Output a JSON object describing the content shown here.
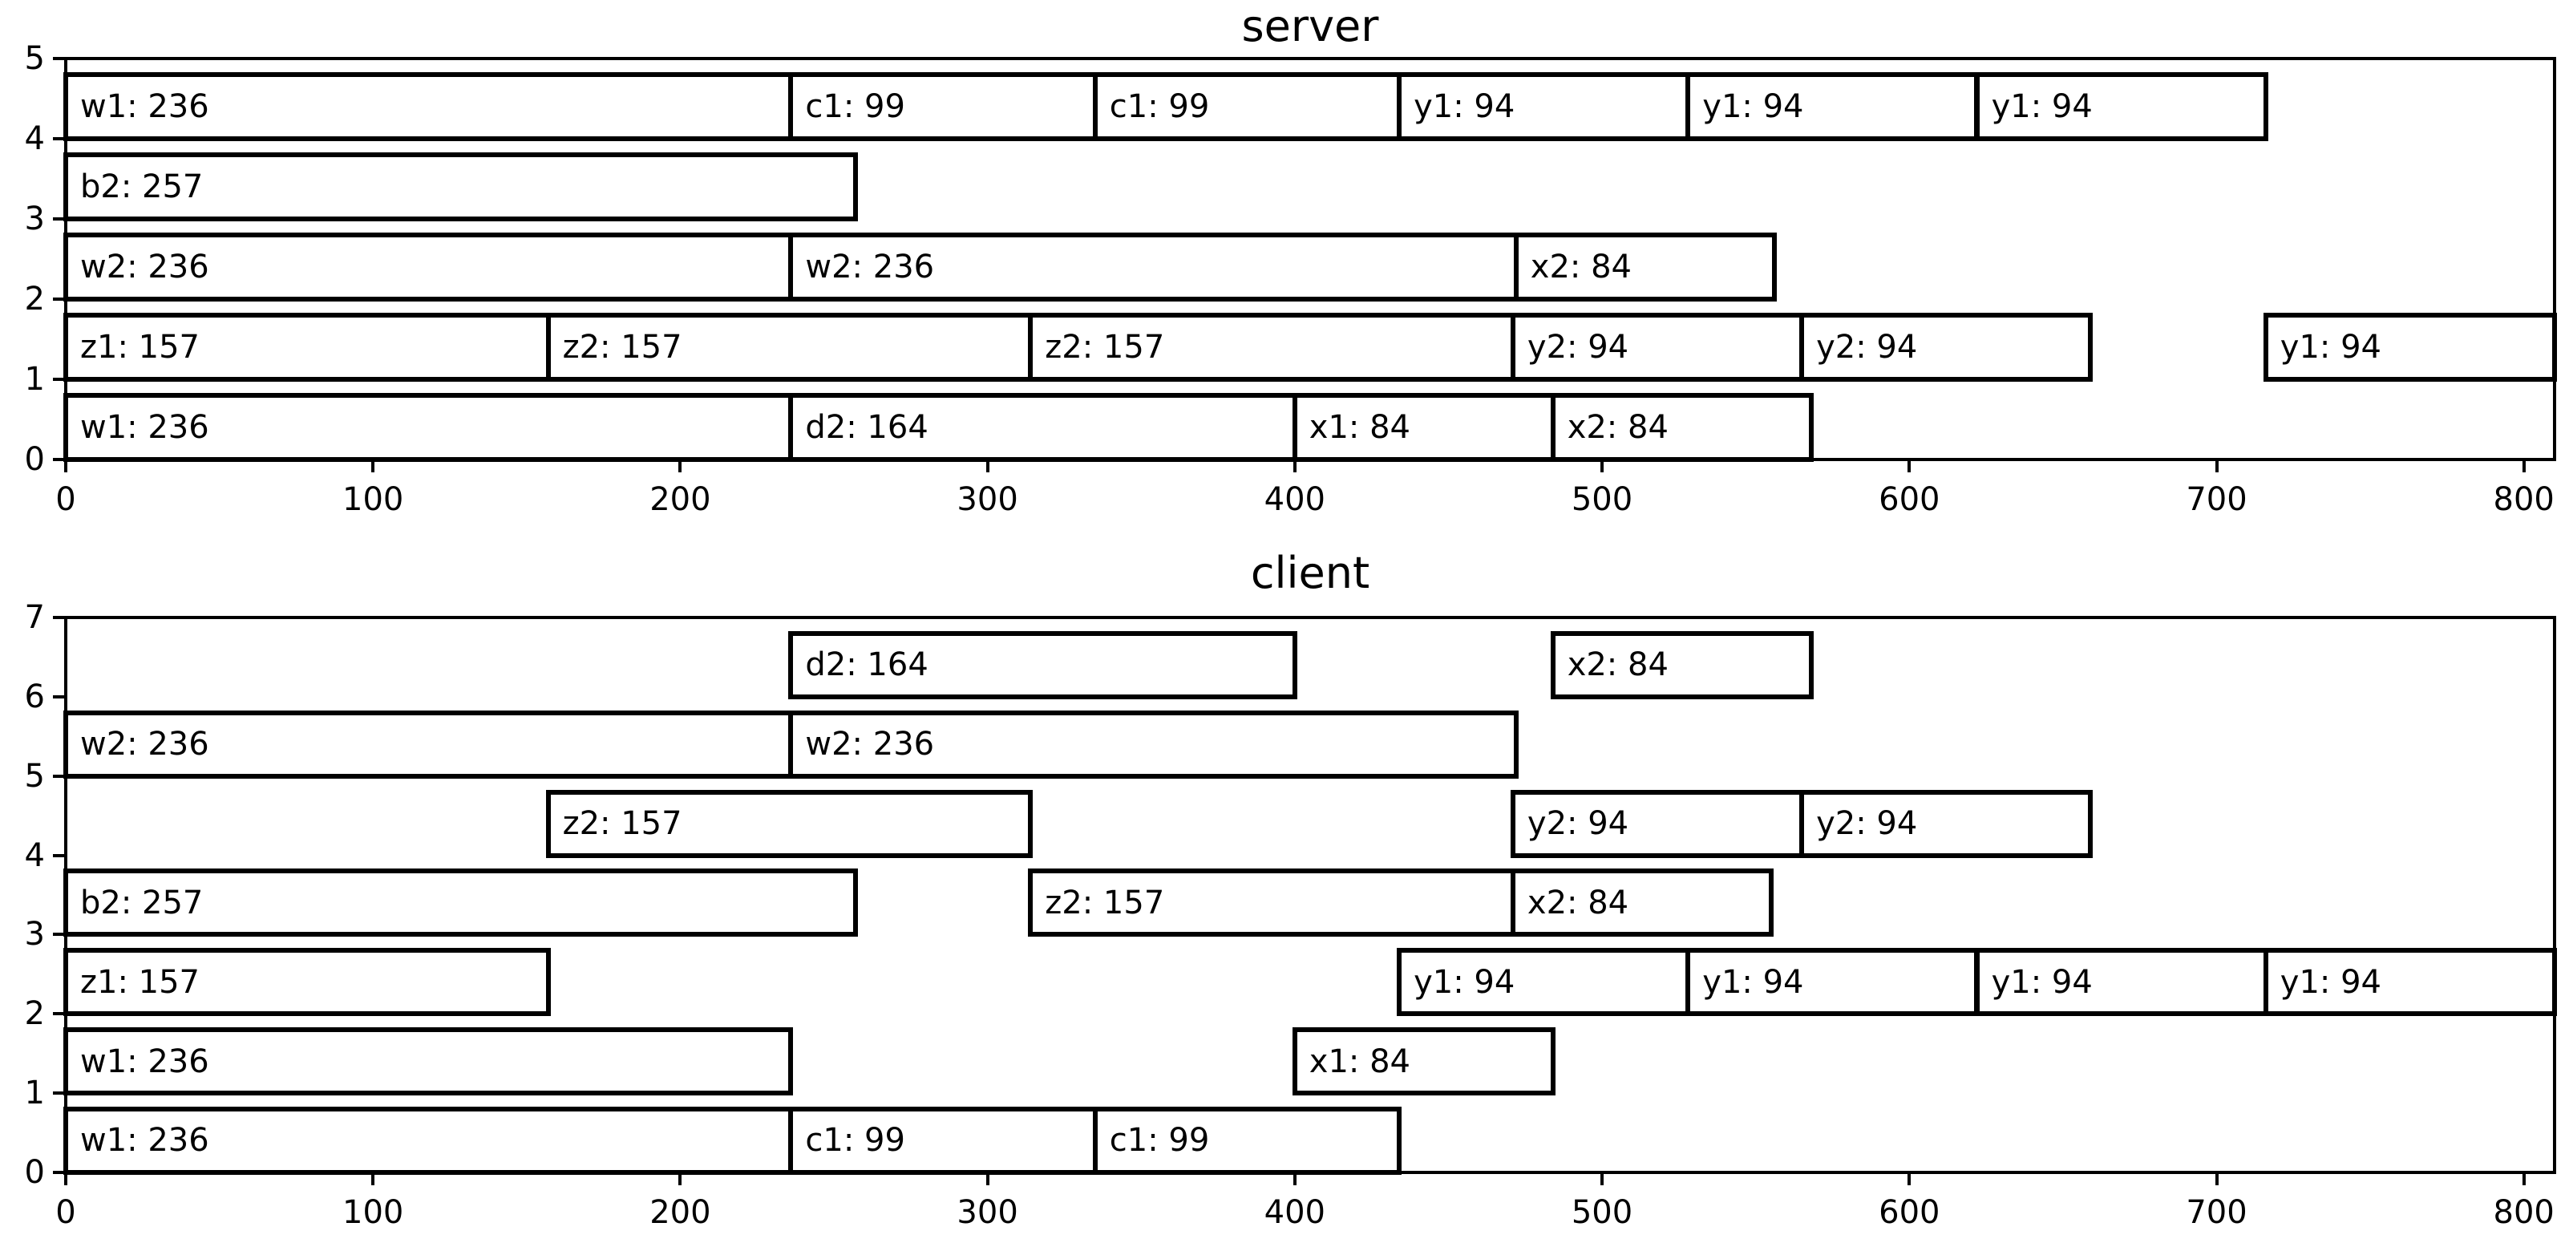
{
  "colors": {
    "background": "#ffffff",
    "bar_fill": "#ffffff",
    "bar_edge": "#000000",
    "text": "#000000"
  },
  "chart_data": [
    {
      "type": "broken_barh",
      "title": "server",
      "xlim": [
        0,
        810
      ],
      "ylim": [
        0,
        5
      ],
      "xticks": [
        0,
        100,
        200,
        300,
        400,
        500,
        600,
        700,
        800
      ],
      "yticks": [
        0,
        1,
        2,
        3,
        4,
        5
      ],
      "bar_height": 0.8,
      "grid": false,
      "legend": false,
      "bars": [
        {
          "row": 4,
          "start": 0,
          "end": 236,
          "label": "w1: 236"
        },
        {
          "row": 4,
          "start": 236,
          "end": 335,
          "label": "c1: 99"
        },
        {
          "row": 4,
          "start": 335,
          "end": 434,
          "label": "c1: 99"
        },
        {
          "row": 4,
          "start": 434,
          "end": 528,
          "label": "y1: 94"
        },
        {
          "row": 4,
          "start": 528,
          "end": 622,
          "label": "y1: 94"
        },
        {
          "row": 4,
          "start": 622,
          "end": 716,
          "label": "y1: 94"
        },
        {
          "row": 3,
          "start": 0,
          "end": 257,
          "label": "b2: 257"
        },
        {
          "row": 2,
          "start": 0,
          "end": 236,
          "label": "w2: 236"
        },
        {
          "row": 2,
          "start": 236,
          "end": 472,
          "label": "w2: 236"
        },
        {
          "row": 2,
          "start": 472,
          "end": 556,
          "label": "x2: 84"
        },
        {
          "row": 1,
          "start": 0,
          "end": 157,
          "label": "z1: 157"
        },
        {
          "row": 1,
          "start": 157,
          "end": 314,
          "label": "z2: 157"
        },
        {
          "row": 1,
          "start": 314,
          "end": 471,
          "label": "z2: 157"
        },
        {
          "row": 1,
          "start": 471,
          "end": 565,
          "label": "y2: 94"
        },
        {
          "row": 1,
          "start": 565,
          "end": 659,
          "label": "y2: 94"
        },
        {
          "row": 1,
          "start": 716,
          "end": 810,
          "label": "y1: 94"
        },
        {
          "row": 0,
          "start": 0,
          "end": 236,
          "label": "w1: 236"
        },
        {
          "row": 0,
          "start": 236,
          "end": 400,
          "label": "d2: 164"
        },
        {
          "row": 0,
          "start": 400,
          "end": 484,
          "label": "x1: 84"
        },
        {
          "row": 0,
          "start": 484,
          "end": 568,
          "label": "x2: 84"
        }
      ]
    },
    {
      "type": "broken_barh",
      "title": "client",
      "xlim": [
        0,
        810
      ],
      "ylim": [
        0,
        7
      ],
      "xticks": [
        0,
        100,
        200,
        300,
        400,
        500,
        600,
        700,
        800
      ],
      "yticks": [
        0,
        1,
        2,
        3,
        4,
        5,
        6,
        7
      ],
      "bar_height": 0.8,
      "grid": false,
      "legend": false,
      "bars": [
        {
          "row": 6,
          "start": 236,
          "end": 400,
          "label": "d2: 164"
        },
        {
          "row": 6,
          "start": 484,
          "end": 568,
          "label": "x2: 84"
        },
        {
          "row": 5,
          "start": 0,
          "end": 236,
          "label": "w2: 236"
        },
        {
          "row": 5,
          "start": 236,
          "end": 472,
          "label": "w2: 236"
        },
        {
          "row": 4,
          "start": 157,
          "end": 314,
          "label": "z2: 157"
        },
        {
          "row": 4,
          "start": 471,
          "end": 565,
          "label": "y2: 94"
        },
        {
          "row": 4,
          "start": 565,
          "end": 659,
          "label": "y2: 94"
        },
        {
          "row": 3,
          "start": 0,
          "end": 257,
          "label": "b2: 257"
        },
        {
          "row": 3,
          "start": 314,
          "end": 471,
          "label": "z2: 157"
        },
        {
          "row": 3,
          "start": 471,
          "end": 555,
          "label": "x2: 84"
        },
        {
          "row": 2,
          "start": 0,
          "end": 157,
          "label": "z1: 157"
        },
        {
          "row": 2,
          "start": 434,
          "end": 528,
          "label": "y1: 94"
        },
        {
          "row": 2,
          "start": 528,
          "end": 622,
          "label": "y1: 94"
        },
        {
          "row": 2,
          "start": 622,
          "end": 716,
          "label": "y1: 94"
        },
        {
          "row": 2,
          "start": 716,
          "end": 810,
          "label": "y1: 94"
        },
        {
          "row": 1,
          "start": 0,
          "end": 236,
          "label": "w1: 236"
        },
        {
          "row": 1,
          "start": 400,
          "end": 484,
          "label": "x1: 84"
        },
        {
          "row": 0,
          "start": 0,
          "end": 236,
          "label": "w1: 236"
        },
        {
          "row": 0,
          "start": 236,
          "end": 335,
          "label": "c1: 99"
        },
        {
          "row": 0,
          "start": 335,
          "end": 434,
          "label": "c1: 99"
        }
      ]
    }
  ]
}
